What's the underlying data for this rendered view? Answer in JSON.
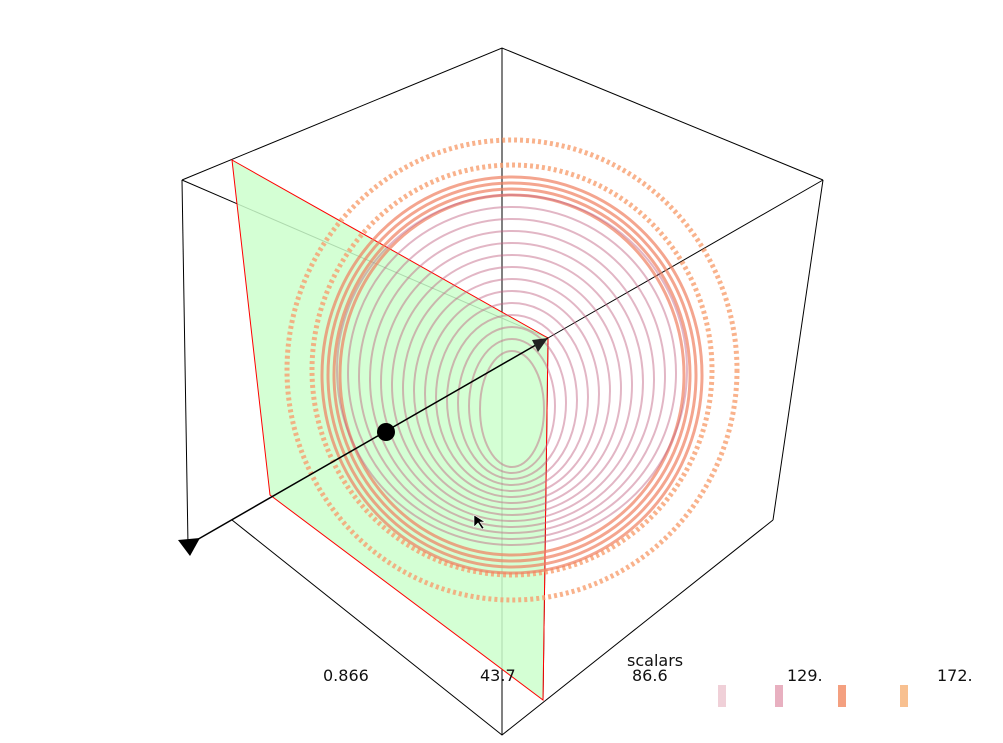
{
  "scalar_bar": {
    "title": "scalars",
    "ticks": [
      "0.866",
      "43.7",
      "86.6",
      "129.",
      "172."
    ],
    "colormap": [
      "#f5f5f5",
      "#f0d0d8",
      "#e8b0c0",
      "#f4a080",
      "#f8c090"
    ]
  },
  "colors": {
    "plane": "#ccffcc",
    "plane_edge": "#ff0000",
    "outline": "#000000",
    "sphere": "#c06080",
    "shell": "#f08060",
    "outer": "#f8a070"
  },
  "widget": {
    "handle": "sphere-handle",
    "arrow": "normal-arrow"
  }
}
